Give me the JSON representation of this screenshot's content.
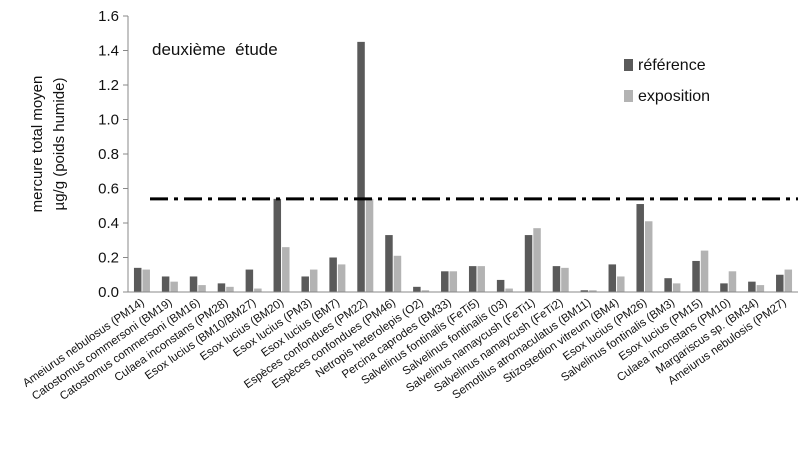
{
  "chart_data": {
    "type": "bar",
    "title": "",
    "annotation": "deuxième  étude",
    "xlabel": "",
    "ylabel": [
      "mercure total moyen",
      "µg/g (poids humide)"
    ],
    "ylim": [
      0,
      1.6
    ],
    "yticks": [
      "0.0",
      "0.2",
      "0.4",
      "0.6",
      "0.8",
      "1.0",
      "1.2",
      "1.4",
      "1.6"
    ],
    "threshold": 0.54,
    "grid": false,
    "legend_position": "top-right",
    "categories": [
      "Ameiurus nebulosus (PM14)",
      "Catostomus commersoni (BM19)",
      "Catostomus commersoni (BM16)",
      "Culaea inconstans (PM28)",
      "Esox lucius (BM10/BM27)",
      "Esox lucius (BM20)",
      "Esox lucius (PM3)",
      "Esox lucius (BM7)",
      "Espèces confondues (PM22)",
      "Espèces confondues (PM46)",
      "Netropis heterolepis (O2)",
      "Percina caprodes (BM33)",
      "Salvelinus fontinalis (FeTi5)",
      "Salvelinus fontinalis (03)",
      "Salvelinus namaycush (FeTi1)",
      "Salvelinus namaycush (FeTi2)",
      "Semotilus atromaculatus (BM11)",
      "Stizostedion vitreum (BM4)",
      "Esox lucius (PM26)",
      "Salvelinus fontinalis (BM3)",
      "Esox lucius (PM15)",
      "Culaea inconstans (PM10)",
      "Margariscus sp. (BM34)",
      "Ameiurus nebulosis (PM27)"
    ],
    "series": [
      {
        "name": "référence",
        "color": "#5a5a5a",
        "values": [
          0.14,
          0.09,
          0.09,
          0.05,
          0.13,
          0.54,
          0.09,
          0.2,
          1.45,
          0.33,
          0.03,
          0.12,
          0.15,
          0.07,
          0.33,
          0.15,
          0.01,
          0.16,
          0.51,
          0.08,
          0.18,
          0.05,
          0.06,
          0.1
        ]
      },
      {
        "name": "exposition",
        "color": "#b3b3b3",
        "values": [
          0.13,
          0.06,
          0.04,
          0.03,
          0.02,
          0.26,
          0.13,
          0.16,
          0.54,
          0.21,
          0.01,
          0.12,
          0.15,
          0.02,
          0.37,
          0.14,
          0.01,
          0.09,
          0.41,
          0.05,
          0.24,
          0.12,
          0.04,
          0.13
        ]
      }
    ]
  }
}
